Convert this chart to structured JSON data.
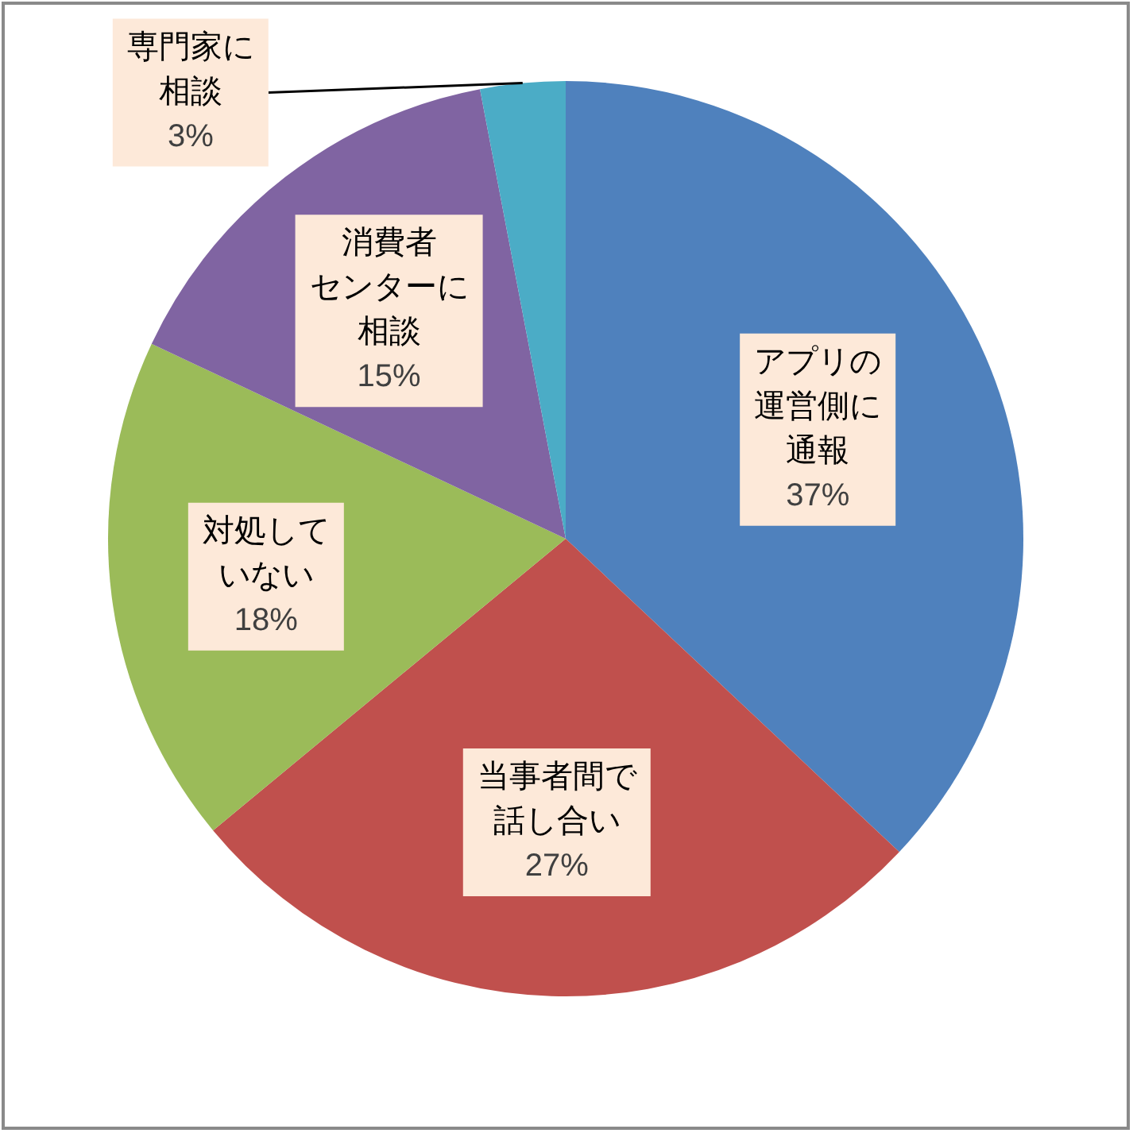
{
  "chart_data": {
    "type": "pie",
    "categories": [
      "アプリの運営側に通報",
      "当事者間で話し合い",
      "対処していない",
      "消費者センターに相談",
      "専門家に相談"
    ],
    "values": [
      37,
      27,
      18,
      15,
      3
    ],
    "value_labels": [
      "37%",
      "27%",
      "18%",
      "15%",
      "3%"
    ],
    "colors": [
      "#4f81bd",
      "#c0504d",
      "#9bbb59",
      "#8064a2",
      "#4bacc6"
    ]
  }
}
